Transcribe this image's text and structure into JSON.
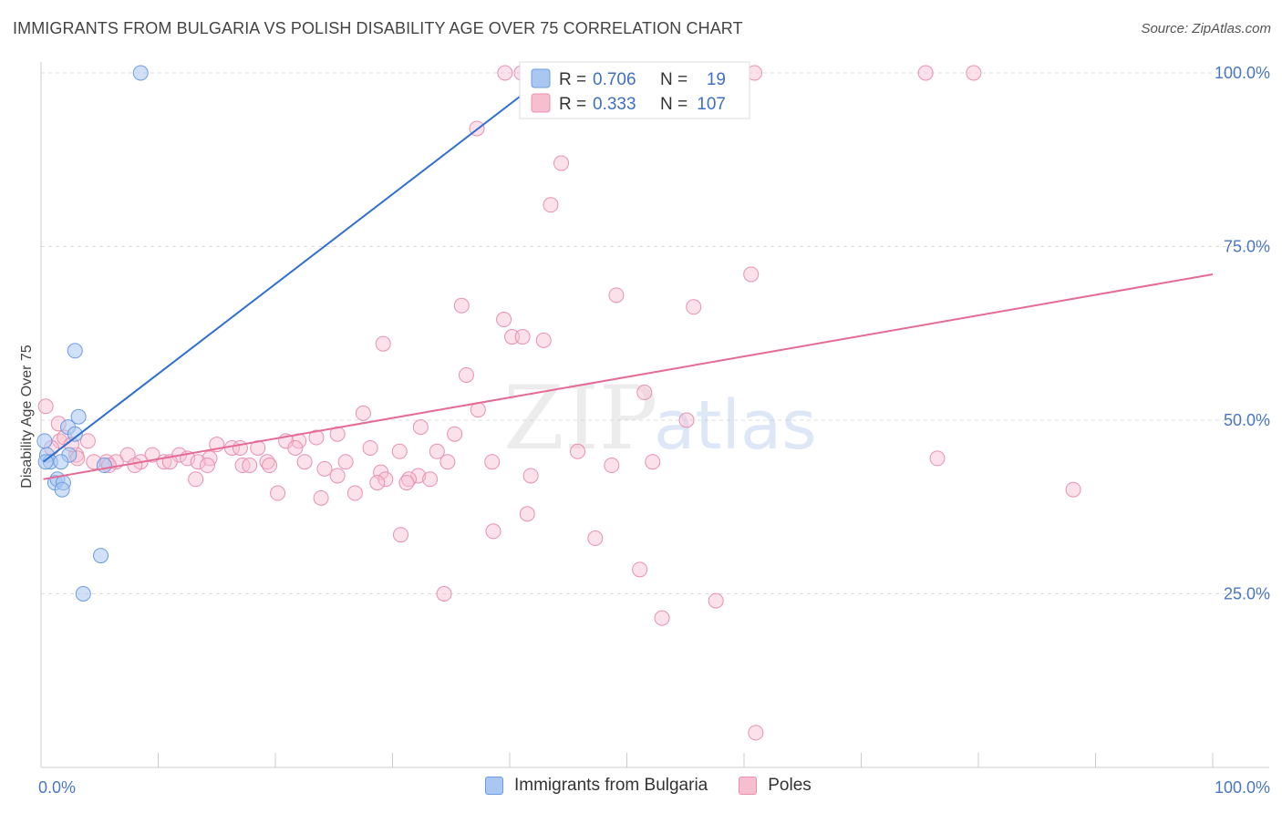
{
  "title": "IMMIGRANTS FROM BULGARIA VS POLISH DISABILITY AGE OVER 75 CORRELATION CHART",
  "source": "Source: ZipAtlas.com",
  "watermark": {
    "zip": "ZIP",
    "atlas": "atlas"
  },
  "legend_top": {
    "r_label": "R =",
    "n_label": "N =",
    "rows": [
      {
        "r": "0.706",
        "n": "19",
        "color": "#a9c7f0",
        "stroke": "#6e9ce0"
      },
      {
        "r": "0.333",
        "n": "107",
        "color": "#f6bfd0",
        "stroke": "#e891ae"
      }
    ]
  },
  "legend_bottom": [
    {
      "label": "Immigrants from Bulgaria",
      "color": "#a9c7f0",
      "stroke": "#6e9ce0"
    },
    {
      "label": "Poles",
      "color": "#f6bfd0",
      "stroke": "#e891ae"
    }
  ],
  "chart_data": {
    "type": "scatter",
    "title": "IMMIGRANTS FROM BULGARIA VS POLISH DISABILITY AGE OVER 75 CORRELATION CHART",
    "ylabel": "Disability Age Over 75",
    "xlabel": "",
    "xlim": [
      0,
      100
    ],
    "ylim": [
      0,
      102
    ],
    "x_tick_labels": [
      "0.0%",
      "100.0%"
    ],
    "y_tick_labels": [
      "25.0%",
      "50.0%",
      "75.0%",
      "100.0%"
    ],
    "y_ticks": [
      25,
      50,
      75,
      100
    ],
    "grid": true,
    "legend_placement": "top-center",
    "series": [
      {
        "name": "Immigrants from Bulgaria",
        "color": "#6e9ce0",
        "trend": {
          "x": [
            0.2,
            43.5
          ],
          "y": [
            44,
            100
          ]
        },
        "points": [
          {
            "x": 8.5,
            "y": 100
          },
          {
            "x": 2.9,
            "y": 60
          },
          {
            "x": 3.2,
            "y": 50.5
          },
          {
            "x": 2.3,
            "y": 49
          },
          {
            "x": 2.9,
            "y": 48
          },
          {
            "x": 0.3,
            "y": 47
          },
          {
            "x": 0.5,
            "y": 45
          },
          {
            "x": 2.4,
            "y": 45
          },
          {
            "x": 0.8,
            "y": 44
          },
          {
            "x": 1.7,
            "y": 44
          },
          {
            "x": 0.4,
            "y": 44
          },
          {
            "x": 5.4,
            "y": 43.5
          },
          {
            "x": 1.2,
            "y": 41
          },
          {
            "x": 1.4,
            "y": 41.5
          },
          {
            "x": 1.9,
            "y": 41
          },
          {
            "x": 1.8,
            "y": 40
          },
          {
            "x": 5.1,
            "y": 30.5
          },
          {
            "x": 3.6,
            "y": 25
          }
        ]
      },
      {
        "name": "Poles",
        "color": "#e891ae",
        "trend": {
          "x": [
            0.2,
            100
          ],
          "y": [
            41.5,
            71
          ]
        },
        "points": [
          {
            "x": 39.6,
            "y": 100
          },
          {
            "x": 41,
            "y": 100
          },
          {
            "x": 42,
            "y": 100
          },
          {
            "x": 46.9,
            "y": 100
          },
          {
            "x": 54,
            "y": 100
          },
          {
            "x": 60.9,
            "y": 100
          },
          {
            "x": 75.5,
            "y": 100
          },
          {
            "x": 79.6,
            "y": 100
          },
          {
            "x": 37.2,
            "y": 92
          },
          {
            "x": 44.4,
            "y": 87
          },
          {
            "x": 43.5,
            "y": 81
          },
          {
            "x": 60.6,
            "y": 71
          },
          {
            "x": 49.1,
            "y": 68
          },
          {
            "x": 35.9,
            "y": 66.5
          },
          {
            "x": 55.7,
            "y": 66.3
          },
          {
            "x": 39.5,
            "y": 64.5
          },
          {
            "x": 40.2,
            "y": 62
          },
          {
            "x": 41.1,
            "y": 62
          },
          {
            "x": 42.9,
            "y": 61.5
          },
          {
            "x": 29.2,
            "y": 61
          },
          {
            "x": 36.3,
            "y": 56.5
          },
          {
            "x": 51.5,
            "y": 54
          },
          {
            "x": 37.3,
            "y": 51.5
          },
          {
            "x": 27.5,
            "y": 51
          },
          {
            "x": 55.1,
            "y": 50
          },
          {
            "x": 32.4,
            "y": 49
          },
          {
            "x": 35.3,
            "y": 48
          },
          {
            "x": 25.3,
            "y": 48
          },
          {
            "x": 23.5,
            "y": 47.5
          },
          {
            "x": 22.0,
            "y": 47
          },
          {
            "x": 20.9,
            "y": 47
          },
          {
            "x": 21.7,
            "y": 46
          },
          {
            "x": 18.5,
            "y": 46
          },
          {
            "x": 15.0,
            "y": 46.5
          },
          {
            "x": 16.3,
            "y": 46
          },
          {
            "x": 17.0,
            "y": 46
          },
          {
            "x": 28.1,
            "y": 46
          },
          {
            "x": 33.8,
            "y": 45.5
          },
          {
            "x": 30.6,
            "y": 45.5
          },
          {
            "x": 45.8,
            "y": 45.5
          },
          {
            "x": 76.5,
            "y": 44.5
          },
          {
            "x": 3.0,
            "y": 45
          },
          {
            "x": 9.5,
            "y": 45
          },
          {
            "x": 11.8,
            "y": 45
          },
          {
            "x": 7.4,
            "y": 45
          },
          {
            "x": 12.5,
            "y": 44.5
          },
          {
            "x": 14.4,
            "y": 44.5
          },
          {
            "x": 13.4,
            "y": 44
          },
          {
            "x": 4.5,
            "y": 44
          },
          {
            "x": 5.6,
            "y": 44
          },
          {
            "x": 6.4,
            "y": 44
          },
          {
            "x": 8.5,
            "y": 44
          },
          {
            "x": 10.5,
            "y": 44
          },
          {
            "x": 11.0,
            "y": 44
          },
          {
            "x": 19.3,
            "y": 44
          },
          {
            "x": 22.5,
            "y": 44
          },
          {
            "x": 26.0,
            "y": 44
          },
          {
            "x": 34.7,
            "y": 44
          },
          {
            "x": 38.5,
            "y": 44
          },
          {
            "x": 52.2,
            "y": 44
          },
          {
            "x": 5.8,
            "y": 43.5
          },
          {
            "x": 8.0,
            "y": 43.5
          },
          {
            "x": 14.2,
            "y": 43.5
          },
          {
            "x": 17.2,
            "y": 43.5
          },
          {
            "x": 17.8,
            "y": 43.5
          },
          {
            "x": 19.5,
            "y": 43.5
          },
          {
            "x": 48.7,
            "y": 43.5
          },
          {
            "x": 24.2,
            "y": 43
          },
          {
            "x": 29.0,
            "y": 42.5
          },
          {
            "x": 41.8,
            "y": 42
          },
          {
            "x": 25.3,
            "y": 42
          },
          {
            "x": 32.2,
            "y": 42
          },
          {
            "x": 29.4,
            "y": 41.5
          },
          {
            "x": 31.4,
            "y": 41.5
          },
          {
            "x": 33.2,
            "y": 41.5
          },
          {
            "x": 13.2,
            "y": 41.5
          },
          {
            "x": 28.7,
            "y": 41
          },
          {
            "x": 31.2,
            "y": 41
          },
          {
            "x": 88.1,
            "y": 40
          },
          {
            "x": 20.2,
            "y": 39.5
          },
          {
            "x": 26.8,
            "y": 39.5
          },
          {
            "x": 23.9,
            "y": 38.8
          },
          {
            "x": 41.5,
            "y": 36.5
          },
          {
            "x": 38.6,
            "y": 34
          },
          {
            "x": 30.7,
            "y": 33.5
          },
          {
            "x": 47.3,
            "y": 33
          },
          {
            "x": 51.1,
            "y": 28.5
          },
          {
            "x": 34.4,
            "y": 25
          },
          {
            "x": 57.6,
            "y": 24
          },
          {
            "x": 53.0,
            "y": 21.5
          },
          {
            "x": 61.0,
            "y": 5
          },
          {
            "x": 1.6,
            "y": 47
          },
          {
            "x": 4.0,
            "y": 47
          },
          {
            "x": 2.0,
            "y": 47.5
          },
          {
            "x": 1.5,
            "y": 49.5
          },
          {
            "x": 0.9,
            "y": 46
          },
          {
            "x": 2.6,
            "y": 46.5
          },
          {
            "x": 0.4,
            "y": 52
          },
          {
            "x": 3.1,
            "y": 44.5
          }
        ]
      }
    ]
  }
}
